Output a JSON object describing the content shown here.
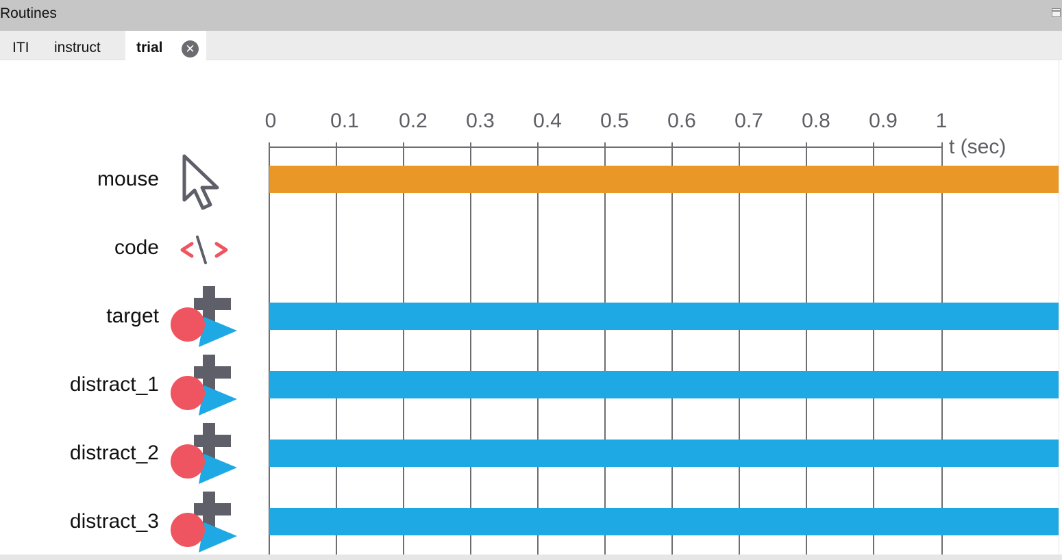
{
  "window": {
    "title": "Routines"
  },
  "tabs": [
    {
      "label": "ITI",
      "active": false
    },
    {
      "label": "instruct",
      "active": false
    },
    {
      "label": "trial",
      "active": true,
      "close_glyph": "✕"
    }
  ],
  "timeline": {
    "ticks": [
      "0",
      "0.1",
      "0.2",
      "0.3",
      "0.4",
      "0.5",
      "0.6",
      "0.7",
      "0.8",
      "0.9",
      "1"
    ],
    "axis_unit": "t (sec)"
  },
  "components": [
    {
      "name": "mouse",
      "icon": "mouse-cursor-icon",
      "has_bar": true,
      "color": "#e99828"
    },
    {
      "name": "code",
      "icon": "code-icon",
      "has_bar": false
    },
    {
      "name": "target",
      "icon": "polygon-stimulus-icon",
      "has_bar": true,
      "color": "#1fa9e4"
    },
    {
      "name": "distract_1",
      "icon": "polygon-stimulus-icon",
      "has_bar": true,
      "color": "#1fa9e4"
    },
    {
      "name": "distract_2",
      "icon": "polygon-stimulus-icon",
      "has_bar": true,
      "color": "#1fa9e4"
    },
    {
      "name": "distract_3",
      "icon": "polygon-stimulus-icon",
      "has_bar": true,
      "color": "#1fa9e4"
    }
  ],
  "colors": {
    "mouse_bar": "#e99828",
    "stimulus_bar": "#1fa9e4",
    "code_icon": "#ee5560",
    "icon_gray": "#5f5f69",
    "icon_red": "#ee5560",
    "icon_blue": "#1fa9e4"
  }
}
